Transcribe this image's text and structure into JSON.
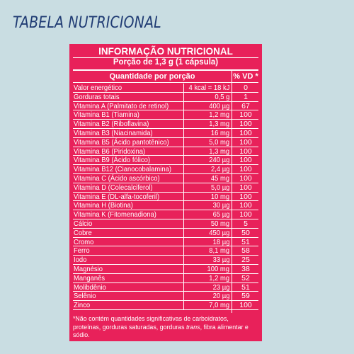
{
  "page_title": "TABELA NUTRICIONAL",
  "label": {
    "title": "INFORMAÇÃO NUTRICIONAL",
    "portion": "Porção de 1,3 g (1 cápsula)",
    "columns": {
      "quantity": "Quantidade por porção",
      "vd": "% VD *"
    },
    "rows": [
      {
        "name": "Valor energético",
        "amount": "4 kcal = 18 kJ",
        "vd": "0"
      },
      {
        "name": "Gorduras totais",
        "amount": "0,5 g",
        "vd": "1"
      },
      {
        "name": "Vitamina A (Palmitato de retinol)",
        "amount": "400 µg",
        "vd": "67"
      },
      {
        "name": "Vitamina B1 (Tiamina)",
        "amount": "1,2 mg",
        "vd": "100"
      },
      {
        "name": "Vitamina B2 (Riboflavina)",
        "amount": "1,3 mg",
        "vd": "100"
      },
      {
        "name": "Vitamina B3 (Niacinamida)",
        "amount": "16 mg",
        "vd": "100"
      },
      {
        "name": "Vitamina B5 (Ácido pantotênico)",
        "amount": "5,0 mg",
        "vd": "100"
      },
      {
        "name": "Vitamina B6 (Piridoxina)",
        "amount": "1,3 mg",
        "vd": "100"
      },
      {
        "name": "Vitamina B9 (Ácido fólico)",
        "amount": "240 µg",
        "vd": "100"
      },
      {
        "name": "Vitamina B12 (Cianocobalamina)",
        "amount": "2,4 µg",
        "vd": "100"
      },
      {
        "name": "Vitamina C (Ácido ascórbico)",
        "amount": "45 mg",
        "vd": "100"
      },
      {
        "name": "Vitamina D (Colecalciferol)",
        "amount": "5,0 µg",
        "vd": "100"
      },
      {
        "name": "Vitamina E (DL-alfa-tocoferil)",
        "amount": "10 mg",
        "vd": "100"
      },
      {
        "name": "Vitamina H (Biotina)",
        "amount": "30 µg",
        "vd": "100"
      },
      {
        "name": "Vitamina K (Fitomenadiona)",
        "amount": "65 µg",
        "vd": "100"
      },
      {
        "name": "Cálcio",
        "amount": "50 mg",
        "vd": "5"
      },
      {
        "name": "Cobre",
        "amount": "450 µg",
        "vd": "50"
      },
      {
        "name": "Cromo",
        "amount": "18 µg",
        "vd": "51"
      },
      {
        "name": "Ferro",
        "amount": "8,1 mg",
        "vd": "58"
      },
      {
        "name": "Iodo",
        "amount": "33 µg",
        "vd": "25"
      },
      {
        "name": "Magnésio",
        "amount": "100 mg",
        "vd": "38"
      },
      {
        "name": "Manganês",
        "amount": "1,2 mg",
        "vd": "52"
      },
      {
        "name": "Molibdênio",
        "amount": "23 µg",
        "vd": "51"
      },
      {
        "name": "Selênio",
        "amount": "20 µg",
        "vd": "59"
      },
      {
        "name": "Zinco",
        "amount": "7,0 mg",
        "vd": "100"
      }
    ],
    "footnote": {
      "part1": "*Não contém quantidades significativas de carboidratos, proteínas, gorduras saturadas, gorduras ",
      "italic": "trans",
      "part2": ", fibra alimentar e sódio."
    }
  },
  "colors": {
    "background": "#c9dde2",
    "label": "#e8215a",
    "title": "#1f3b73"
  }
}
